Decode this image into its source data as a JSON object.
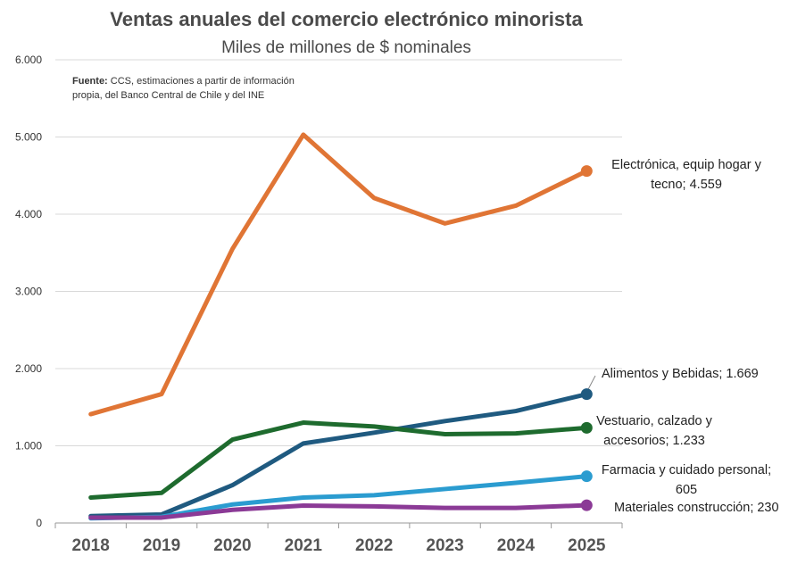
{
  "chart_data": {
    "type": "line",
    "title": "Ventas anuales del comercio electrónico minorista",
    "subtitle": "Miles de millones de $ nominales",
    "source_label": "Fuente:",
    "source_text_line1": " CCS, estimaciones a partir de información",
    "source_text_line2": "propia, del Banco Central de Chile y del INE",
    "x": [
      "2018",
      "2019",
      "2020",
      "2021",
      "2022",
      "2023",
      "2024",
      "2025"
    ],
    "ylim": [
      0,
      6000
    ],
    "yticks": [
      0,
      1000,
      2000,
      3000,
      4000,
      5000,
      6000
    ],
    "ytick_labels": [
      "0",
      "1.000",
      "2.000",
      "3.000",
      "4.000",
      "5.000",
      "6.000"
    ],
    "grid": true,
    "series": [
      {
        "key": "electronica",
        "color": "#E07535",
        "values": [
          1410,
          1670,
          3550,
          5030,
          4210,
          3880,
          4110,
          4559
        ],
        "label_lines": [
          "Electrónica, equip hogar y",
          "tecno; 4.559"
        ]
      },
      {
        "key": "alimentos",
        "color": "#1F5A80",
        "values": [
          90,
          110,
          490,
          1030,
          1170,
          1320,
          1450,
          1669
        ],
        "label_lines": [
          "Alimentos y Bebidas; 1.669"
        ]
      },
      {
        "key": "vestuario",
        "color": "#1E6B2E",
        "values": [
          330,
          390,
          1080,
          1300,
          1250,
          1150,
          1160,
          1233
        ],
        "label_lines": [
          "Vestuario, calzado y",
          "accesorios; 1.233"
        ]
      },
      {
        "key": "farmacia",
        "color": "#2B9CD0",
        "values": [
          60,
          80,
          240,
          330,
          360,
          440,
          520,
          605
        ],
        "label_lines": [
          "Farmacia y cuidado personal;",
          "605"
        ]
      },
      {
        "key": "materiales",
        "color": "#8B3A96",
        "values": [
          70,
          70,
          170,
          225,
          215,
          195,
          195,
          230
        ],
        "label_lines": [
          "Materiales construcción; 230"
        ]
      }
    ]
  }
}
